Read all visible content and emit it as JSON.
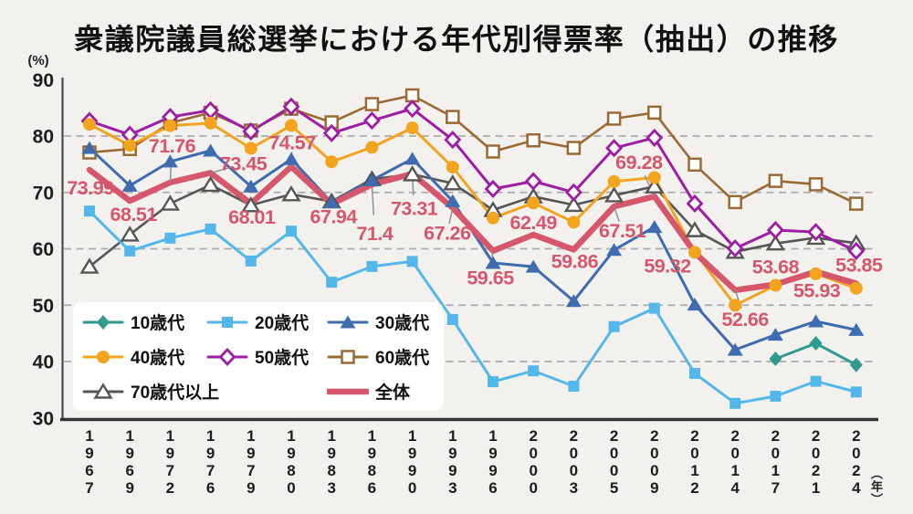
{
  "chart_data": {
    "type": "line",
    "title": "衆議院議員総選挙における年代別得票率（抽出）の推移",
    "y_axis": {
      "unit": "(%)",
      "min": 30,
      "max": 90,
      "tick_step": 10,
      "grid": "dashed horizontal at 40,50,60,70,80"
    },
    "x_axis": {
      "unit": "（年）",
      "categories": [
        "1967",
        "1969",
        "1972",
        "1976",
        "1979",
        "1980",
        "1983",
        "1986",
        "1990",
        "1993",
        "1996",
        "2000",
        "2003",
        "2005",
        "2009",
        "2012",
        "2014",
        "2017",
        "2021",
        "2024"
      ]
    },
    "legend": {
      "position": "bottom-left",
      "grid": [
        [
          0,
          1,
          2
        ],
        [
          3,
          4,
          5
        ],
        [
          6,
          -1,
          7
        ]
      ]
    },
    "series": [
      {
        "key": "10s",
        "name": "10歳代",
        "color": "#2f9a8e",
        "marker": "diamond",
        "line_width": 3,
        "values": [
          null,
          null,
          null,
          null,
          null,
          null,
          null,
          null,
          null,
          null,
          null,
          null,
          null,
          null,
          null,
          null,
          null,
          40.49,
          43.23,
          39.4
        ]
      },
      {
        "key": "20s",
        "name": "20歳代",
        "color": "#54b7e9",
        "marker": "square",
        "line_width": 3,
        "values": [
          66.69,
          59.61,
          61.89,
          63.5,
          57.83,
          63.13,
          54.07,
          56.86,
          57.76,
          47.46,
          36.42,
          38.35,
          35.62,
          46.2,
          49.45,
          37.89,
          32.58,
          33.85,
          36.5,
          34.6
        ]
      },
      {
        "key": "30s",
        "name": "30歳代",
        "color": "#3e6cae",
        "marker": "triangle",
        "line_width": 3,
        "values": [
          77.88,
          71.19,
          75.48,
          77.41,
          71.06,
          75.92,
          68.25,
          72.15,
          75.97,
          68.46,
          57.49,
          56.82,
          50.72,
          59.79,
          63.87,
          50.1,
          42.09,
          44.75,
          47.12,
          45.6
        ]
      },
      {
        "key": "40s",
        "name": "40歳代",
        "color": "#f2a41f",
        "marker": "circle",
        "line_width": 3,
        "values": [
          82.07,
          78.33,
          81.84,
          82.29,
          77.82,
          81.88,
          75.43,
          77.99,
          81.44,
          74.48,
          65.46,
          68.13,
          64.72,
          71.94,
          72.63,
          59.38,
          49.98,
          53.52,
          55.56,
          53.0
        ]
      },
      {
        "key": "50s",
        "name": "50歳代",
        "color": "#9e1da4",
        "marker": "diamond-open",
        "line_width": 3,
        "values": [
          82.68,
          80.23,
          83.38,
          84.57,
          80.82,
          85.23,
          80.51,
          82.74,
          84.85,
          79.34,
          70.61,
          71.98,
          70.01,
          77.86,
          79.69,
          68.02,
          60.07,
          63.32,
          62.96,
          59.6
        ]
      },
      {
        "key": "60s",
        "name": "60歳代",
        "color": "#9a6a35",
        "marker": "square-open",
        "line_width": 2.6,
        "values": [
          77.08,
          77.7,
          82.34,
          84.13,
          80.97,
          84.84,
          82.43,
          85.66,
          87.21,
          83.38,
          77.25,
          79.23,
          77.89,
          83.08,
          84.15,
          74.93,
          68.28,
          72.04,
          71.43,
          68.0
        ]
      },
      {
        "key": "70s-plus",
        "name": "70歳代以上",
        "color": "#555555",
        "marker": "triangle-open",
        "line_width": 2.6,
        "values": [
          56.83,
          62.52,
          68.01,
          71.35,
          67.72,
          69.66,
          68.41,
          72.36,
          73.21,
          71.61,
          66.88,
          69.28,
          67.78,
          69.48,
          71.06,
          63.3,
          59.46,
          60.94,
          61.96,
          61.0
        ]
      },
      {
        "key": "overall",
        "name": "全体",
        "color": "#d6566b",
        "marker": "none",
        "line_width": 6.5,
        "values": [
          73.99,
          68.51,
          71.76,
          73.45,
          68.01,
          74.57,
          67.94,
          71.4,
          73.31,
          67.26,
          59.65,
          62.49,
          59.86,
          67.51,
          69.28,
          59.32,
          52.66,
          53.68,
          55.93,
          53.85
        ]
      }
    ],
    "overall_point_labels": [
      "73.99",
      "68.51",
      "71.76",
      "73.45",
      "68.01",
      "74.57",
      "67.94",
      "71.4",
      "73.31",
      "67.26",
      "59.65",
      "62.49",
      "59.86",
      "67.51",
      "69.28",
      "59.32",
      "52.66",
      "53.68",
      "55.93",
      "53.85"
    ],
    "label_layout": [
      [
        1,
        20,
        0
      ],
      [
        4,
        15,
        0
      ],
      [
        2,
        -40,
        1
      ],
      [
        36,
        -10,
        1
      ],
      [
        1,
        15,
        0
      ],
      [
        1,
        -26,
        1
      ],
      [
        2,
        14,
        0
      ],
      [
        3,
        54,
        1
      ],
      [
        2,
        38,
        1
      ],
      [
        -6,
        28,
        1
      ],
      [
        -3,
        30,
        1
      ],
      [
        0,
        -13,
        0
      ],
      [
        1,
        13,
        0
      ],
      [
        9,
        27,
        1
      ],
      [
        -17,
        -37,
        1
      ],
      [
        -30,
        15,
        0
      ],
      [
        11,
        32,
        1
      ],
      [
        0,
        -19,
        0
      ],
      [
        1,
        21,
        0
      ],
      [
        3,
        -20,
        0
      ]
    ]
  }
}
